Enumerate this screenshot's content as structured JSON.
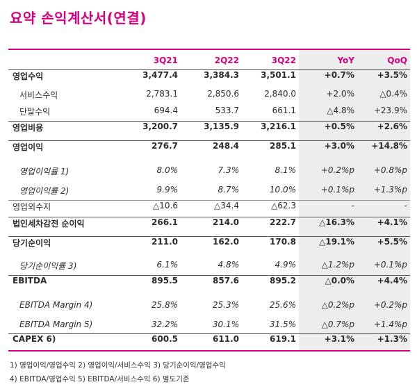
{
  "title": "요약 손익계산서(연결)",
  "columns": [
    "3Q21",
    "2Q22",
    "3Q22",
    "YoY",
    "QoQ"
  ],
  "rows": [
    {
      "label": "영업수익",
      "values": [
        "3,477.4",
        "3,384.3",
        "3,501.1",
        "+0.7%",
        "+3.5%"
      ]
    },
    {
      "label": "서비스수익",
      "values": [
        "2,783.1",
        "2,850.6",
        "2,840.0",
        "+2.0%",
        "△0.4%"
      ]
    },
    {
      "label": "단말수익",
      "values": [
        "694.4",
        "533.7",
        "661.1",
        "△4.8%",
        "+23.9%"
      ]
    },
    {
      "label": "영업비용",
      "values": [
        "3,200.7",
        "3,135.9",
        "3,216.1",
        "+0.5%",
        "+2.6%"
      ]
    },
    {
      "label": "영업이익",
      "values": [
        "276.7",
        "248.4",
        "285.1",
        "+3.0%",
        "+14.8%"
      ]
    },
    {
      "label": "영업이익률 1)",
      "values": [
        "8.0%",
        "7.3%",
        "8.1%",
        "+0.2%p",
        "+0.8%p"
      ]
    },
    {
      "label": "영업이익률 2)",
      "values": [
        "9.9%",
        "8.7%",
        "10.0%",
        "+0.1%p",
        "+1.3%p"
      ]
    },
    {
      "label": "영업외수지",
      "values": [
        "△10.6",
        "△34.4",
        "△62.3",
        "-",
        "-"
      ]
    },
    {
      "label": "법인세차감전 순이익",
      "values": [
        "266.1",
        "214.0",
        "222.7",
        "△16.3%",
        "+4.1%"
      ]
    },
    {
      "label": "당기순이익",
      "values": [
        "211.0",
        "162.0",
        "170.8",
        "△19.1%",
        "+5.5%"
      ]
    },
    {
      "label": "당기순이익률 3)",
      "values": [
        "6.1%",
        "4.8%",
        "4.9%",
        "△1.2%p",
        "+0.1%p"
      ]
    },
    {
      "label": "EBITDA",
      "values": [
        "895.5",
        "857.6",
        "895.2",
        "△0.0%",
        "+4.4%"
      ]
    },
    {
      "label": "EBITDA Margin 4)",
      "values": [
        "25.8%",
        "25.3%",
        "25.6%",
        "△0.2%p",
        "+0.2%p"
      ]
    },
    {
      "label": "EBITDA Margin 5)",
      "values": [
        "32.2%",
        "30.1%",
        "31.5%",
        "△0.7%p",
        "+1.4%p"
      ]
    },
    {
      "label": "CAPEX 6)",
      "values": [
        "600.5",
        "611.0",
        "619.1",
        "+3.1%",
        "+1.3%"
      ]
    }
  ],
  "footnotes": [
    "1) 영업이익/영업수익 2) 영업이익/서비스수익 3) 당기순이익/영업수익",
    "4) EBITDA/영업수익 5) EBITDA/서비스수익 6) 별도기준"
  ]
}
